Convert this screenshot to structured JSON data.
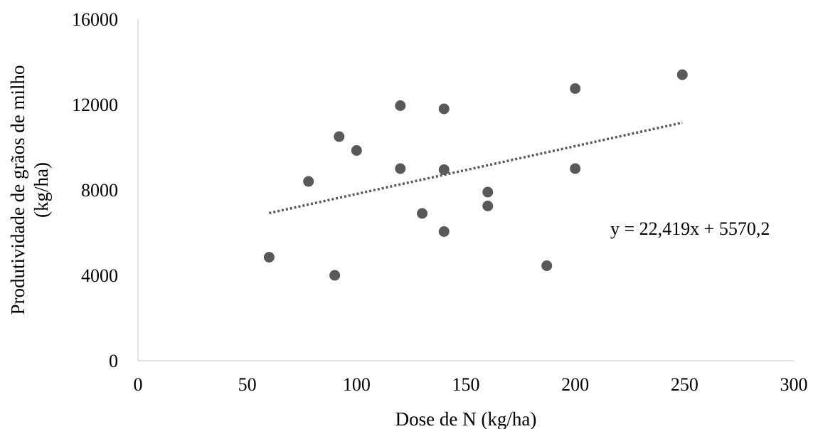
{
  "chart_data": {
    "type": "scatter",
    "title": "",
    "xlabel": "Dose de N (kg/ha)",
    "ylabel_lines": [
      "Produtividade de grãos de  milho",
      "(kg/ha)"
    ],
    "xlim": [
      0,
      300
    ],
    "ylim": [
      0,
      16000
    ],
    "xticks": [
      0,
      50,
      100,
      150,
      200,
      250,
      300
    ],
    "yticks": [
      0,
      4000,
      8000,
      12000,
      16000
    ],
    "grid": false,
    "legend": "none",
    "marker_color": "#595959",
    "trend_color": "#595959",
    "points": [
      {
        "x": 60,
        "y": 4850
      },
      {
        "x": 78,
        "y": 8400
      },
      {
        "x": 90,
        "y": 4000
      },
      {
        "x": 92,
        "y": 10500
      },
      {
        "x": 100,
        "y": 9850
      },
      {
        "x": 120,
        "y": 11950
      },
      {
        "x": 120,
        "y": 9000
      },
      {
        "x": 130,
        "y": 6900
      },
      {
        "x": 140,
        "y": 11800
      },
      {
        "x": 140,
        "y": 8950
      },
      {
        "x": 140,
        "y": 6050
      },
      {
        "x": 160,
        "y": 7900
      },
      {
        "x": 160,
        "y": 7250
      },
      {
        "x": 187,
        "y": 4450
      },
      {
        "x": 200,
        "y": 12750
      },
      {
        "x": 200,
        "y": 9000
      },
      {
        "x": 249,
        "y": 13400
      }
    ],
    "trendline": {
      "type": "linear",
      "slope": 22.419,
      "intercept": 5570.2,
      "x_range": [
        60,
        249
      ],
      "style": "dotted"
    },
    "annotations": [
      {
        "text": "y = 22,419x + 5570,2"
      }
    ]
  }
}
